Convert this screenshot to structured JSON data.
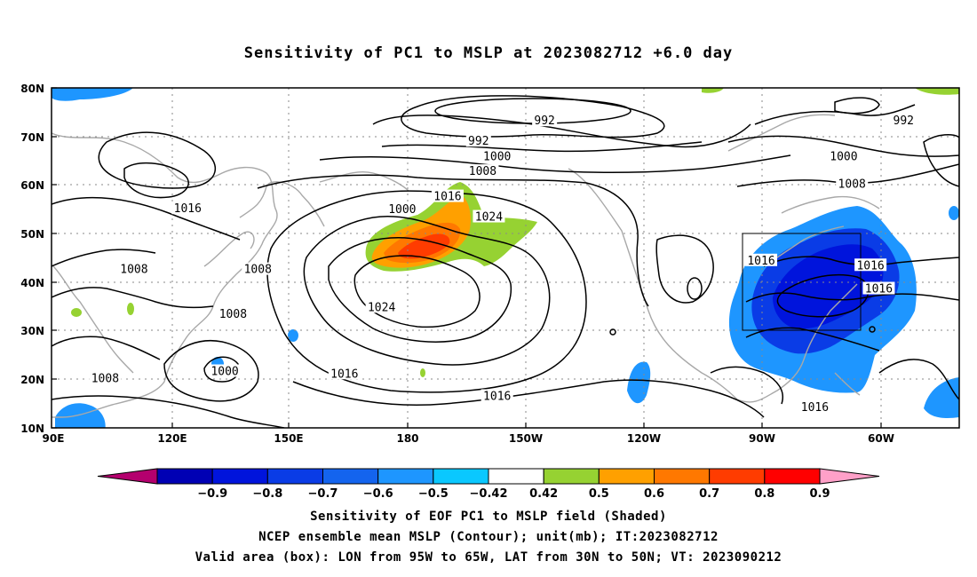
{
  "title": "Sensitivity of PC1 to MSLP at 2023082712 +6.0 day",
  "map": {
    "lat_labels": [
      "80N",
      "70N",
      "60N",
      "50N",
      "40N",
      "30N",
      "20N",
      "10N"
    ],
    "lon_labels": [
      "90E",
      "120E",
      "150E",
      "180",
      "150W",
      "120W",
      "90W",
      "60W"
    ],
    "contour_labels": [
      {
        "text": "992",
        "lon": 209.5,
        "lat": 73.2
      },
      {
        "text": "992",
        "lon": 193.5,
        "lat": 69.0
      },
      {
        "text": "992",
        "lon": 296.5,
        "lat": 73.2
      },
      {
        "text": "1000",
        "lon": 198.0,
        "lat": 65.8
      },
      {
        "text": "1000",
        "lon": 282.0,
        "lat": 65.8
      },
      {
        "text": "1000",
        "lon": 175.0,
        "lat": 55.0
      },
      {
        "text": "1000",
        "lon": 132.0,
        "lat": 21.6
      },
      {
        "text": "1008",
        "lon": 194.5,
        "lat": 62.8
      },
      {
        "text": "1008",
        "lon": 284.0,
        "lat": 60.2
      },
      {
        "text": "1008",
        "lon": 110.0,
        "lat": 42.6
      },
      {
        "text": "1008",
        "lon": 140.0,
        "lat": 42.6
      },
      {
        "text": "1008",
        "lon": 134.0,
        "lat": 33.4
      },
      {
        "text": "1008",
        "lon": 103.0,
        "lat": 20.1
      },
      {
        "text": "1016",
        "lon": 123.0,
        "lat": 55.1
      },
      {
        "text": "1016",
        "lon": 186.0,
        "lat": 57.6
      },
      {
        "text": "1016",
        "lon": 262.0,
        "lat": 44.4
      },
      {
        "text": "1016",
        "lon": 288.5,
        "lat": 43.4
      },
      {
        "text": "1016",
        "lon": 290.5,
        "lat": 38.6
      },
      {
        "text": "1016",
        "lon": 161.0,
        "lat": 21.1
      },
      {
        "text": "1016",
        "lon": 198.0,
        "lat": 16.5
      },
      {
        "text": "1016",
        "lon": 275.0,
        "lat": 14.2
      },
      {
        "text": "1024",
        "lon": 196.0,
        "lat": 53.4
      },
      {
        "text": "1024",
        "lon": 170.0,
        "lat": 34.8
      }
    ],
    "valid_box": {
      "lon_from": 265,
      "lon_to": 295,
      "lat_from": 30,
      "lat_to": 50
    }
  },
  "colorbar": {
    "colors": [
      "#b4006e",
      "#0000b4",
      "#0014dc",
      "#0a3ce6",
      "#1464ee",
      "#1e96ff",
      "#0ac8ff",
      "#ffffff",
      "#96d232",
      "#ffa000",
      "#ff7800",
      "#ff3c00",
      "#ff0000",
      "#ffa0c8"
    ],
    "labels": [
      "-0.9",
      "-0.8",
      "-0.7",
      "-0.6",
      "-0.5",
      "-0.42",
      "0.42",
      "0.5",
      "0.6",
      "0.7",
      "0.8",
      "0.9"
    ]
  },
  "captions": [
    "Sensitivity of EOF PC1 to MSLP field (Shaded)",
    "NCEP ensemble mean MSLP (Contour); unit(mb); IT:2023082712",
    "Valid area (box): LON from 95W to 65W, LAT from 30N to 50N; VT: 2023090212"
  ]
}
